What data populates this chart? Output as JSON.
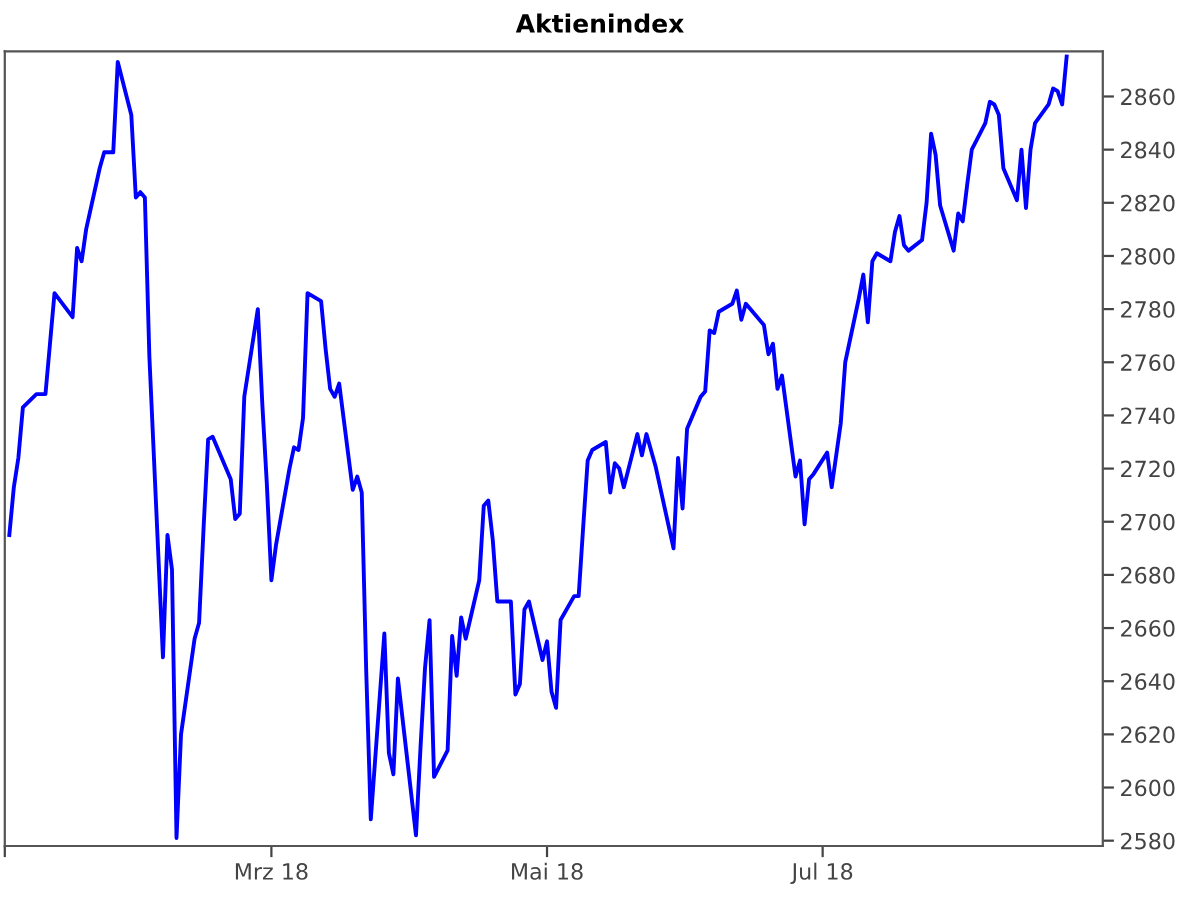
{
  "chart_data": {
    "type": "line",
    "title": "Aktienindex",
    "x": [
      "2018-01-02",
      "2018-01-03",
      "2018-01-04",
      "2018-01-05",
      "2018-01-08",
      "2018-01-10",
      "2018-01-11",
      "2018-01-12",
      "2018-01-16",
      "2018-01-17",
      "2018-01-18",
      "2018-01-19",
      "2018-01-22",
      "2018-01-23",
      "2018-01-25",
      "2018-01-26",
      "2018-01-29",
      "2018-01-30",
      "2018-01-31",
      "2018-02-01",
      "2018-02-02",
      "2018-02-05",
      "2018-02-06",
      "2018-02-07",
      "2018-02-08",
      "2018-02-09",
      "2018-02-12",
      "2018-02-13",
      "2018-02-14",
      "2018-02-15",
      "2018-02-16",
      "2018-02-20",
      "2018-02-21",
      "2018-02-22",
      "2018-02-23",
      "2018-02-26",
      "2018-02-27",
      "2018-02-28",
      "2018-03-01",
      "2018-03-02",
      "2018-03-05",
      "2018-03-06",
      "2018-03-07",
      "2018-03-08",
      "2018-03-09",
      "2018-03-12",
      "2018-03-13",
      "2018-03-14",
      "2018-03-15",
      "2018-03-16",
      "2018-03-19",
      "2018-03-20",
      "2018-03-21",
      "2018-03-22",
      "2018-03-23",
      "2018-03-26",
      "2018-03-27",
      "2018-03-28",
      "2018-03-29",
      "2018-04-02",
      "2018-04-03",
      "2018-04-04",
      "2018-04-05",
      "2018-04-06",
      "2018-04-09",
      "2018-04-10",
      "2018-04-11",
      "2018-04-12",
      "2018-04-13",
      "2018-04-16",
      "2018-04-17",
      "2018-04-18",
      "2018-04-19",
      "2018-04-20",
      "2018-04-23",
      "2018-04-24",
      "2018-04-25",
      "2018-04-26",
      "2018-04-27",
      "2018-04-30",
      "2018-05-01",
      "2018-05-02",
      "2018-05-03",
      "2018-05-04",
      "2018-05-07",
      "2018-05-08",
      "2018-05-09",
      "2018-05-10",
      "2018-05-11",
      "2018-05-14",
      "2018-05-15",
      "2018-05-16",
      "2018-05-17",
      "2018-05-18",
      "2018-05-21",
      "2018-05-22",
      "2018-05-23",
      "2018-05-24",
      "2018-05-25",
      "2018-05-29",
      "2018-05-30",
      "2018-05-31",
      "2018-06-01",
      "2018-06-04",
      "2018-06-05",
      "2018-06-06",
      "2018-06-07",
      "2018-06-08",
      "2018-06-11",
      "2018-06-12",
      "2018-06-13",
      "2018-06-14",
      "2018-06-15",
      "2018-06-18",
      "2018-06-19",
      "2018-06-20",
      "2018-06-21",
      "2018-06-22",
      "2018-06-25",
      "2018-06-26",
      "2018-06-27",
      "2018-06-28",
      "2018-06-29",
      "2018-07-02",
      "2018-07-03",
      "2018-07-05",
      "2018-07-06",
      "2018-07-09",
      "2018-07-10",
      "2018-07-11",
      "2018-07-12",
      "2018-07-13",
      "2018-07-16",
      "2018-07-17",
      "2018-07-18",
      "2018-07-19",
      "2018-07-20",
      "2018-07-23",
      "2018-07-24",
      "2018-07-25",
      "2018-07-26",
      "2018-07-27",
      "2018-07-30",
      "2018-07-31",
      "2018-08-01",
      "2018-08-02",
      "2018-08-03",
      "2018-08-06",
      "2018-08-07",
      "2018-08-08",
      "2018-08-09",
      "2018-08-10",
      "2018-08-13",
      "2018-08-14",
      "2018-08-15",
      "2018-08-16",
      "2018-08-17",
      "2018-08-20",
      "2018-08-21",
      "2018-08-22",
      "2018-08-23",
      "2018-08-24"
    ],
    "series": [
      {
        "color": "#0000ff",
        "values": [
          2695,
          2713,
          2724,
          2743,
          2748,
          2748,
          2767,
          2786,
          2777,
          2803,
          2798,
          2810,
          2833,
          2839,
          2839,
          2873,
          2853,
          2822,
          2824,
          2822,
          2762,
          2649,
          2695,
          2682,
          2581,
          2620,
          2656,
          2662,
          2698,
          2731,
          2732,
          2716,
          2701,
          2703,
          2747,
          2780,
          2744,
          2714,
          2678,
          2691,
          2720,
          2728,
          2727,
          2739,
          2786,
          2783,
          2765,
          2750,
          2747,
          2752,
          2712,
          2717,
          2711,
          2643,
          2588,
          2658,
          2613,
          2605,
          2641,
          2582,
          2615,
          2645,
          2663,
          2604,
          2614,
          2657,
          2642,
          2664,
          2656,
          2678,
          2706,
          2708,
          2693,
          2670,
          2670,
          2635,
          2639,
          2667,
          2670,
          2648,
          2655,
          2636,
          2630,
          2663,
          2672,
          2672,
          2698,
          2723,
          2727,
          2730,
          2711,
          2722,
          2720,
          2713,
          2733,
          2725,
          2733,
          2727,
          2721,
          2690,
          2724,
          2705,
          2735,
          2747,
          2749,
          2772,
          2771,
          2779,
          2782,
          2787,
          2776,
          2782,
          2780,
          2774,
          2763,
          2767,
          2750,
          2755,
          2717,
          2723,
          2699,
          2716,
          2718,
          2726,
          2713,
          2737,
          2760,
          2784,
          2793,
          2775,
          2798,
          2801,
          2798,
          2809,
          2815,
          2804,
          2802,
          2806,
          2820,
          2846,
          2838,
          2819,
          2802,
          2816,
          2813,
          2827,
          2840,
          2850,
          2858,
          2857,
          2853,
          2833,
          2821,
          2840,
          2818,
          2840,
          2850,
          2857,
          2863,
          2862,
          2857,
          2875
        ]
      }
    ],
    "xlim": [
      "2018-01-01",
      "2018-09-01"
    ],
    "xticks": [
      {
        "value": "2018-01-01",
        "label": null
      },
      {
        "value": "2018-03-01",
        "label": "Mrz 18"
      },
      {
        "value": "2018-05-01",
        "label": "Mai 18"
      },
      {
        "value": "2018-07-01",
        "label": "Jul 18"
      }
    ],
    "ylim": [
      2578,
      2877
    ],
    "yticks": [
      2580,
      2600,
      2620,
      2640,
      2660,
      2680,
      2700,
      2720,
      2740,
      2760,
      2780,
      2800,
      2820,
      2840,
      2860
    ],
    "grid": false,
    "legend": false,
    "marker": "none",
    "line_style": "solid"
  }
}
